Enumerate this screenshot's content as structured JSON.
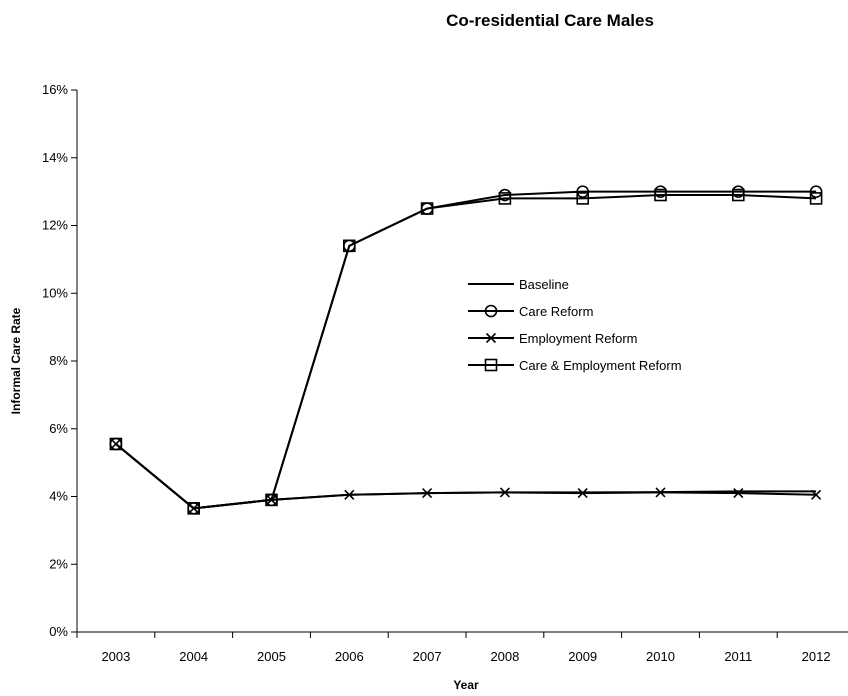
{
  "chart_data": {
    "type": "line",
    "title": "Co-residential Care Males",
    "xlabel": "Year",
    "ylabel": "Informal Care Rate",
    "x": [
      "2003",
      "2004",
      "2005",
      "2006",
      "2007",
      "2008",
      "2009",
      "2010",
      "2011",
      "2012"
    ],
    "ylim": [
      0,
      16
    ],
    "yticks": [
      0,
      2,
      4,
      6,
      8,
      10,
      12,
      14,
      16
    ],
    "ytick_labels": [
      "0%",
      "2%",
      "4%",
      "6%",
      "8%",
      "10%",
      "12%",
      "14%",
      "16%"
    ],
    "grid": false,
    "legend_position": "right-center",
    "series": [
      {
        "name": "Baseline",
        "marker": "none",
        "values": [
          5.55,
          3.65,
          3.9,
          4.05,
          4.1,
          4.12,
          4.12,
          4.13,
          4.15,
          4.15
        ]
      },
      {
        "name": "Care Reform",
        "marker": "circle",
        "values": [
          5.55,
          3.65,
          3.9,
          11.4,
          12.5,
          12.9,
          13.0,
          13.0,
          13.0,
          13.0
        ]
      },
      {
        "name": "Employment Reform",
        "marker": "x",
        "values": [
          5.55,
          3.65,
          3.9,
          4.05,
          4.1,
          4.12,
          4.1,
          4.12,
          4.1,
          4.05
        ]
      },
      {
        "name": "Care & Employment Reform",
        "marker": "square",
        "values": [
          5.55,
          3.65,
          3.9,
          11.4,
          12.5,
          12.8,
          12.8,
          12.9,
          12.9,
          12.8
        ]
      }
    ]
  }
}
